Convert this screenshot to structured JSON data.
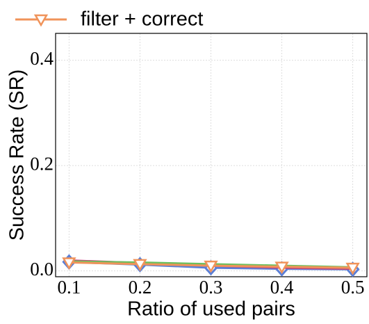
{
  "chart_data": {
    "type": "line",
    "x_label": "Ratio of used pairs",
    "y_label": "Success Rate (SR)",
    "x": [
      0.1,
      0.2,
      0.3,
      0.4,
      0.5
    ],
    "xlim": [
      0.081,
      0.52
    ],
    "xticks": [
      0.1,
      0.2,
      0.3,
      0.4,
      0.5
    ],
    "ylim": [
      -0.011,
      0.451
    ],
    "yticks": [
      {
        "value": 0,
        "label": "0.0"
      },
      {
        "value": 0.2,
        "label": "0.2"
      },
      {
        "value": 0.4,
        "label": "0.4"
      }
    ],
    "grid": true,
    "series": [
      {
        "color": "#5b7fd6",
        "marker": "diamond",
        "values": [
          0.017,
          0.012,
          0.006,
          0.004,
          0.003
        ]
      },
      {
        "color": "#c2457a",
        "marker": "none",
        "values": [
          0.02,
          0.015,
          0.01,
          0.006,
          0.004
        ]
      },
      {
        "color": "#6cbf5e",
        "marker": "none",
        "values": [
          0.018,
          0.016,
          0.013,
          0.01,
          0.007
        ]
      },
      {
        "name": "filter + correct",
        "color": "#f0935a",
        "marker": "triangle-down",
        "values": [
          0.016,
          0.013,
          0.01,
          0.008,
          0.006
        ]
      }
    ]
  }
}
